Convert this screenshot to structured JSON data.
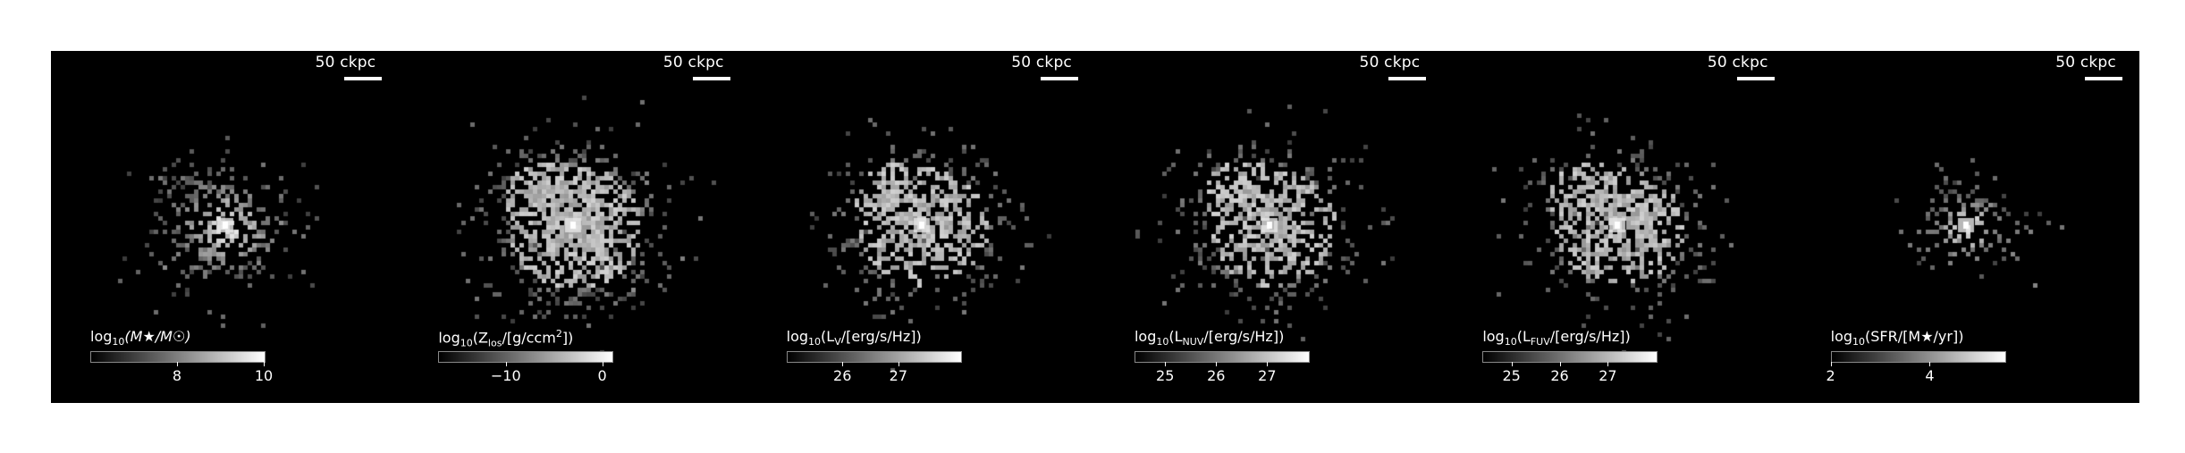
{
  "figure": {
    "panels": [
      {
        "id": "stellar-mass",
        "scalebar": "50 ckpc",
        "colorbar": {
          "label_pre": "log",
          "label_sub": "10",
          "label_post": "(M★/M☉)",
          "min": 6.0,
          "max": 10.0,
          "ticks": [
            {
              "value": 8,
              "label": "8"
            },
            {
              "value": 10,
              "label": "10"
            }
          ]
        },
        "map": {
          "seed": 11,
          "spread": 1.0,
          "density": 0.55,
          "fill": 0.0,
          "core": 1.0
        }
      },
      {
        "id": "metallicity",
        "scalebar": "50 ckpc",
        "colorbar": {
          "label_pre": "log",
          "label_sub": "10",
          "label_post": "(Z",
          "label_sub2": "los",
          "label_post2": "/[g/ccm",
          "label_sup": "2",
          "label_post3": "])",
          "min": -17.0,
          "max": 1.0,
          "ticks": [
            {
              "value": -10,
              "label": "−10"
            },
            {
              "value": 0,
              "label": "0"
            }
          ]
        },
        "map": {
          "seed": 23,
          "spread": 1.25,
          "density": 0.9,
          "fill": 0.55,
          "core": 0.9
        }
      },
      {
        "id": "v-band",
        "scalebar": "50 ckpc",
        "colorbar": {
          "label_pre": "log",
          "label_sub": "10",
          "label_post": "(L",
          "label_sub2": "V",
          "label_post2": "/[erg/s/Hz])",
          "min": 25.0,
          "max": 28.1,
          "ticks": [
            {
              "value": 26,
              "label": "26"
            },
            {
              "value": 27,
              "label": "27"
            }
          ]
        },
        "map": {
          "seed": 37,
          "spread": 1.2,
          "density": 0.8,
          "fill": 0.15,
          "core": 1.0
        }
      },
      {
        "id": "nuv",
        "scalebar": "50 ckpc",
        "colorbar": {
          "label_pre": "log",
          "label_sub": "10",
          "label_post": "(L",
          "label_sub2": "NUV",
          "label_post2": "/[erg/s/Hz])",
          "min": 24.4,
          "max": 27.8,
          "ticks": [
            {
              "value": 25,
              "label": "25"
            },
            {
              "value": 26,
              "label": "26"
            },
            {
              "value": 27,
              "label": "27"
            }
          ]
        },
        "map": {
          "seed": 41,
          "spread": 1.2,
          "density": 0.8,
          "fill": 0.15,
          "core": 1.0
        }
      },
      {
        "id": "fuv",
        "scalebar": "50 ckpc",
        "colorbar": {
          "label_pre": "log",
          "label_sub": "10",
          "label_post": "(L",
          "label_sub2": "FUV",
          "label_post2": "/[erg/s/Hz])",
          "min": 24.4,
          "max": 28.0,
          "ticks": [
            {
              "value": 25,
              "label": "25"
            },
            {
              "value": 26,
              "label": "26"
            },
            {
              "value": 27,
              "label": "27"
            }
          ]
        },
        "map": {
          "seed": 53,
          "spread": 1.2,
          "density": 0.8,
          "fill": 0.15,
          "core": 1.0
        }
      },
      {
        "id": "sfr",
        "scalebar": "50 ckpc",
        "colorbar": {
          "label_pre": "log",
          "label_sub": "10",
          "label_post": "(SFR/[M★/yr])",
          "min": 2.0,
          "max": 5.5,
          "ticks": [
            {
              "value": 2,
              "label": "2"
            },
            {
              "value": 4,
              "label": "4"
            }
          ]
        },
        "map": {
          "seed": 67,
          "spread": 0.75,
          "density": 0.45,
          "fill": 0.0,
          "core": 1.0
        }
      }
    ]
  }
}
